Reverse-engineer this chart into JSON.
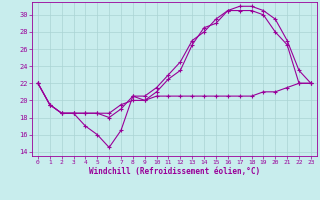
{
  "xlabel": "Windchill (Refroidissement éolien,°C)",
  "xlim": [
    -0.5,
    23.5
  ],
  "ylim": [
    13.5,
    31.5
  ],
  "yticks": [
    14,
    16,
    18,
    20,
    22,
    24,
    26,
    28,
    30
  ],
  "xticks": [
    0,
    1,
    2,
    3,
    4,
    5,
    6,
    7,
    8,
    9,
    10,
    11,
    12,
    13,
    14,
    15,
    16,
    17,
    18,
    19,
    20,
    21,
    22,
    23
  ],
  "bg_color": "#c8eded",
  "line_color": "#990099",
  "grid_color": "#aad4d4",
  "curve1_x": [
    0,
    1,
    2,
    3,
    4,
    5,
    6,
    7,
    8,
    9,
    10,
    11,
    12,
    13,
    14,
    15,
    16,
    17,
    18,
    19,
    20,
    21,
    22,
    23
  ],
  "curve1_y": [
    22.0,
    19.5,
    18.5,
    18.5,
    17.0,
    16.0,
    14.5,
    16.5,
    20.5,
    20.0,
    21.0,
    22.5,
    23.5,
    26.5,
    28.5,
    29.0,
    30.5,
    31.0,
    31.0,
    30.5,
    29.5,
    27.0,
    23.5,
    22.0
  ],
  "curve2_x": [
    0,
    1,
    2,
    3,
    4,
    5,
    6,
    7,
    8,
    9,
    10,
    11,
    12,
    13,
    14,
    15,
    16,
    17,
    18,
    19,
    20,
    21,
    22,
    23
  ],
  "curve2_y": [
    22.0,
    19.5,
    18.5,
    18.5,
    18.5,
    18.5,
    18.0,
    19.0,
    20.5,
    20.5,
    21.5,
    23.0,
    24.5,
    27.0,
    28.0,
    29.5,
    30.5,
    30.5,
    30.5,
    30.0,
    28.0,
    26.5,
    22.0,
    22.0
  ],
  "curve3_x": [
    0,
    1,
    2,
    3,
    4,
    5,
    6,
    7,
    8,
    9,
    10,
    11,
    12,
    13,
    14,
    15,
    16,
    17,
    18,
    19,
    20,
    21,
    22,
    23
  ],
  "curve3_y": [
    22.0,
    19.5,
    18.5,
    18.5,
    18.5,
    18.5,
    18.5,
    19.5,
    20.0,
    20.0,
    20.5,
    20.5,
    20.5,
    20.5,
    20.5,
    20.5,
    20.5,
    20.5,
    20.5,
    21.0,
    21.0,
    21.5,
    22.0,
    22.0
  ]
}
